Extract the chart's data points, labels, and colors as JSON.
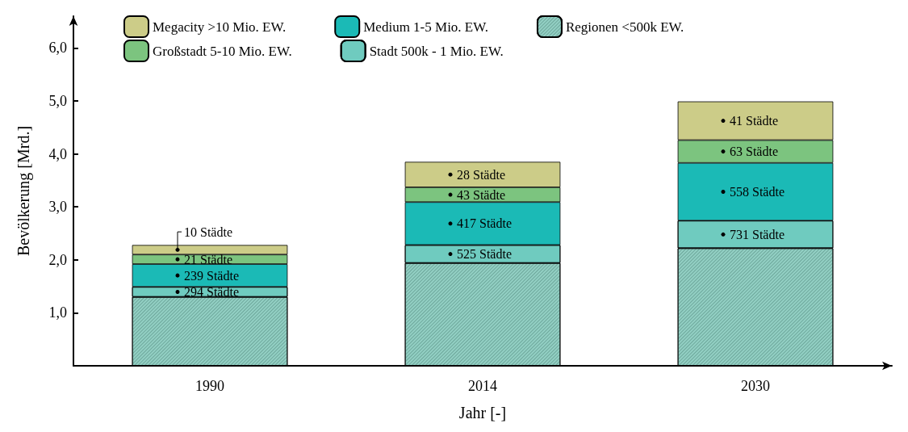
{
  "chart_data": {
    "type": "bar",
    "stacked": true,
    "xlabel": "Jahr [-]",
    "ylabel": "Bevölkerung [Mrd.]",
    "categories": [
      "1990",
      "2014",
      "2030"
    ],
    "series": [
      {
        "name": "Regionen <500k EW.",
        "color": "#93d0c4",
        "values": [
          1.3,
          1.94,
          2.22
        ]
      },
      {
        "name": "Stadt 500k - 1 Mio. EW.",
        "color": "#6fcbbf",
        "values": [
          0.19,
          0.34,
          0.52
        ]
      },
      {
        "name": "Medium 1-5 Mio. EW.",
        "color": "#1bbab6",
        "values": [
          0.43,
          0.81,
          1.09
        ]
      },
      {
        "name": "Großstadt 5-10 Mio. EW.",
        "color": "#7cc47f",
        "values": [
          0.18,
          0.28,
          0.43
        ]
      },
      {
        "name": "Megacity >10 Mio. EW.",
        "color": "#cccc88",
        "values": [
          0.18,
          0.48,
          0.73
        ]
      }
    ],
    "ylim": [
      0,
      6.6
    ],
    "yticks": [
      {
        "value": 1,
        "label": "1,0"
      },
      {
        "value": 2,
        "label": "2,0"
      },
      {
        "value": 3,
        "label": "3,0"
      },
      {
        "value": 4,
        "label": "4,0"
      },
      {
        "value": 5,
        "label": "5,0"
      },
      {
        "value": 6,
        "label": "6,0"
      }
    ],
    "grid": false,
    "legend": "top",
    "annotations": [
      "10 Städte",
      "21 Städte",
      "239 Städte",
      "294 Städte",
      "28 Städte",
      "43 Städte",
      "417 Städte",
      "525 Städte",
      "41 Städte",
      "63 Städte",
      "558 Städte",
      "731 Städte"
    ]
  }
}
